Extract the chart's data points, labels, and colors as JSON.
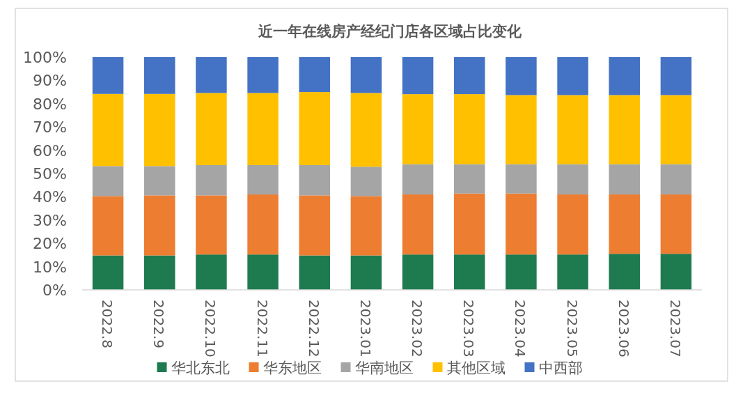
{
  "chart_data": {
    "type": "bar",
    "title": "近一年在线房产经纪门店各区域占比变化",
    "stacked": true,
    "legend": "bottom",
    "categories": [
      "2022.8",
      "2022.9",
      "2022.10",
      "2022.11",
      "2022.12",
      "2023.01",
      "2023.02",
      "2023.03",
      "2023.04",
      "2023.05",
      "2023.06",
      "2023.07"
    ],
    "ylim": [
      0,
      100
    ],
    "yticks": [
      {
        "value": 0,
        "label": "0%"
      },
      {
        "value": 10,
        "label": "10%"
      },
      {
        "value": 20,
        "label": "20%"
      },
      {
        "value": 30,
        "label": "30%"
      },
      {
        "value": 40,
        "label": "40%"
      },
      {
        "value": 50,
        "label": "50%"
      },
      {
        "value": 60,
        "label": "60%"
      },
      {
        "value": 70,
        "label": "70%"
      },
      {
        "value": 80,
        "label": "80%"
      },
      {
        "value": 90,
        "label": "90%"
      },
      {
        "value": 100,
        "label": "100%"
      }
    ],
    "series": [
      {
        "name": "华北东北",
        "color": "#1e7b50",
        "values": [
          14.8,
          14.8,
          15.2,
          15.2,
          14.8,
          14.8,
          15.2,
          15.2,
          15.2,
          15.2,
          15.5,
          15.5
        ]
      },
      {
        "name": "华东地区",
        "color": "#ed7d31",
        "values": [
          25.5,
          25.8,
          25.4,
          25.8,
          25.8,
          25.5,
          25.8,
          26.2,
          26.2,
          25.8,
          25.5,
          25.5
        ]
      },
      {
        "name": "华南地区",
        "color": "#a5a5a5",
        "values": [
          12.9,
          12.6,
          13.0,
          12.6,
          13.0,
          12.6,
          13.0,
          12.6,
          12.6,
          13.0,
          13.0,
          13.0
        ]
      },
      {
        "name": "其他区域",
        "color": "#ffc000",
        "values": [
          31.0,
          31.0,
          31.0,
          31.0,
          31.4,
          31.7,
          30.1,
          30.1,
          29.7,
          29.7,
          29.7,
          29.7
        ]
      },
      {
        "name": "中西部",
        "color": "#4472c4",
        "values": [
          15.8,
          15.8,
          15.4,
          15.4,
          15.0,
          15.4,
          15.9,
          15.9,
          16.3,
          16.3,
          16.3,
          16.3
        ]
      }
    ]
  }
}
